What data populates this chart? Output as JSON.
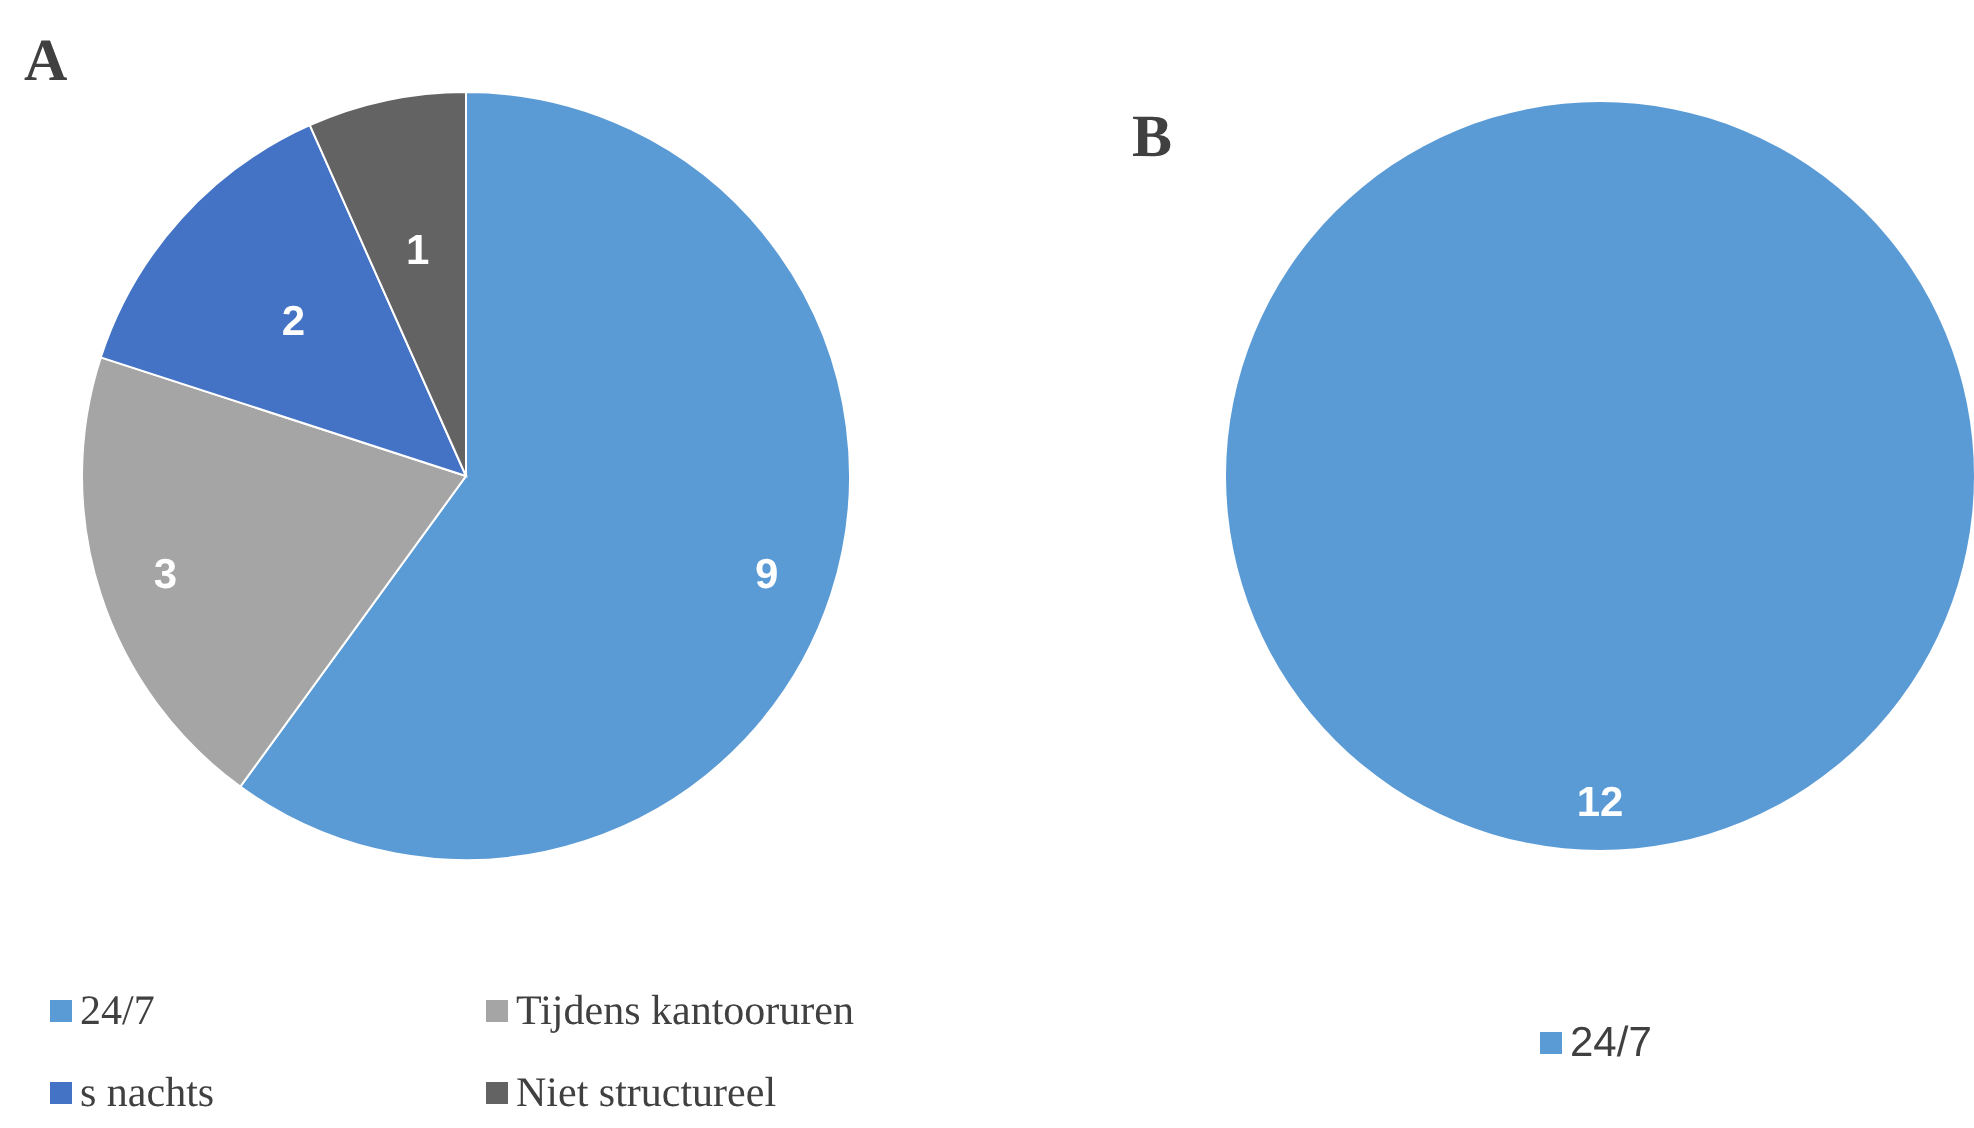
{
  "chart_data": [
    {
      "type": "pie",
      "title": "A",
      "categories": [
        "24/7",
        "Tijdens kantooruren",
        "s nachts",
        "Niet structureel"
      ],
      "values": [
        9,
        3,
        2,
        1
      ],
      "colors": [
        "#5b9bd5",
        "#a5a5a5",
        "#4472c4",
        "#636363"
      ],
      "data_labels": true,
      "legend": "bottom"
    },
    {
      "type": "pie",
      "title": "B",
      "categories": [
        "24/7"
      ],
      "values": [
        12
      ],
      "colors": [
        "#5b9bd5"
      ],
      "data_labels": true,
      "legend": "bottom"
    }
  ]
}
